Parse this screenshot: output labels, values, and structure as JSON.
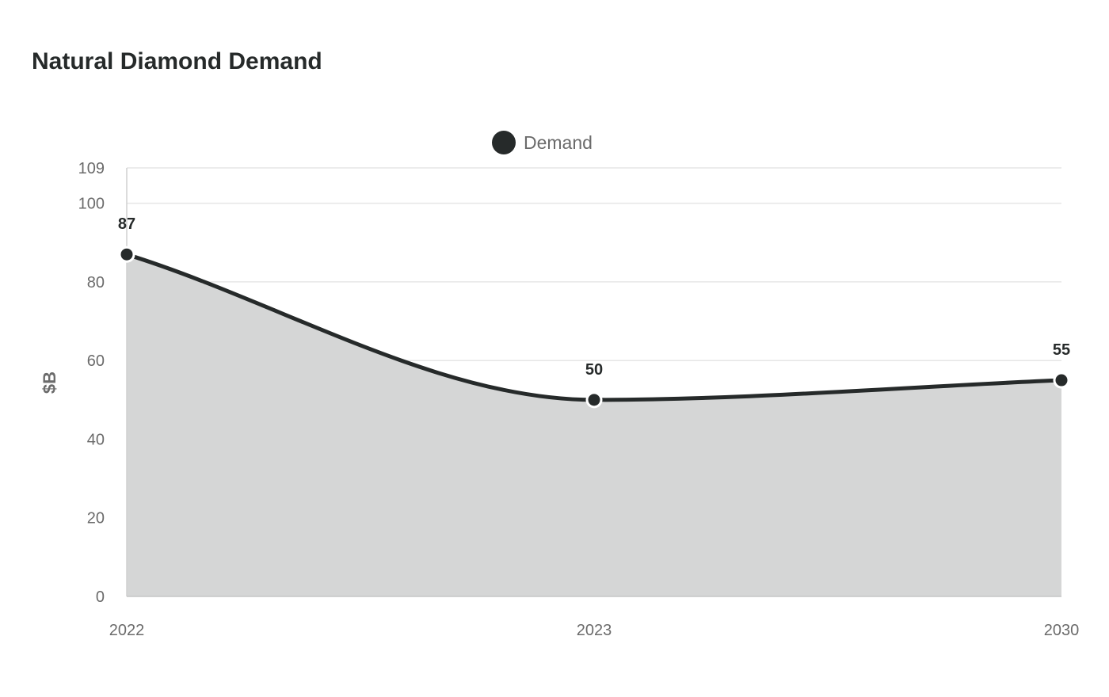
{
  "chart_data": {
    "type": "area",
    "title": "Natural Diamond Demand",
    "xlabel": "",
    "ylabel": "$B",
    "categories": [
      "2022",
      "2023",
      "2030"
    ],
    "series": [
      {
        "name": "Demand",
        "values": [
          87,
          50,
          55
        ]
      }
    ],
    "ylim": [
      0,
      109
    ],
    "yticks": [
      "0",
      "20",
      "40",
      "60",
      "80",
      "100",
      "109"
    ],
    "grid": true,
    "legend_position": "top-center",
    "colors": {
      "line": "#262a2a",
      "area": "#d5d6d6",
      "grid": "#e6e6e6",
      "text": "#6b6b6b"
    }
  }
}
